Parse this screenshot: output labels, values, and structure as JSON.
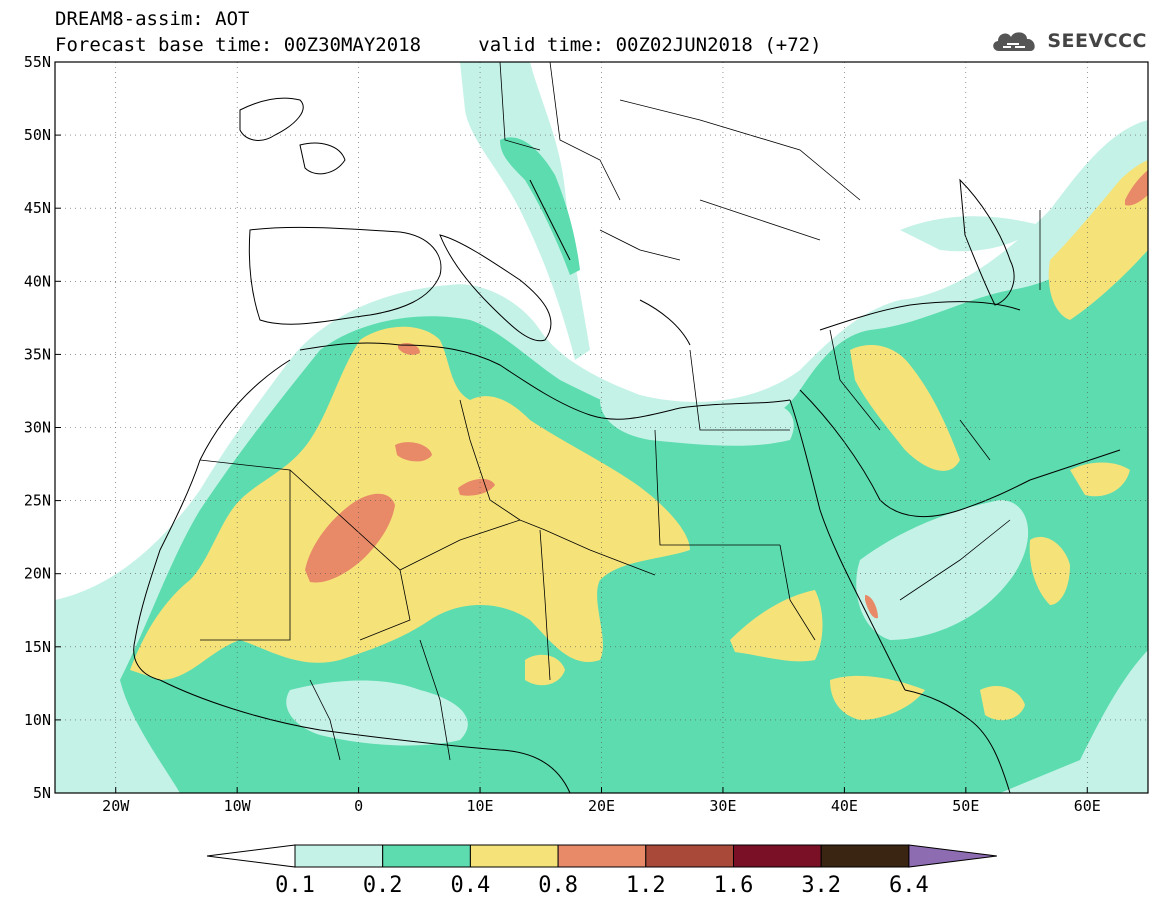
{
  "header": {
    "title": "DREAM8-assim: AOT",
    "base_time_label": "Forecast base time:",
    "base_time": "00Z30MAY2018",
    "valid_time_label": "valid time:",
    "valid_time": "00Z02JUN2018",
    "lead": "(+72)"
  },
  "logo": {
    "text": "SEEVCCC",
    "icon": "cloud-icon"
  },
  "map": {
    "projection": "lat-lon",
    "lon_range": [
      -25,
      65
    ],
    "lat_range": [
      5,
      55
    ],
    "grid": true,
    "lon_ticks": [
      {
        "value": -20,
        "label": "20W"
      },
      {
        "value": -10,
        "label": "10W"
      },
      {
        "value": 0,
        "label": "0"
      },
      {
        "value": 10,
        "label": "10E"
      },
      {
        "value": 20,
        "label": "20E"
      },
      {
        "value": 30,
        "label": "30E"
      },
      {
        "value": 40,
        "label": "40E"
      },
      {
        "value": 50,
        "label": "50E"
      },
      {
        "value": 60,
        "label": "60E"
      }
    ],
    "lat_ticks": [
      {
        "value": 55,
        "label": "55N"
      },
      {
        "value": 50,
        "label": "50N"
      },
      {
        "value": 45,
        "label": "45N"
      },
      {
        "value": 40,
        "label": "40N"
      },
      {
        "value": 35,
        "label": "35N"
      },
      {
        "value": 30,
        "label": "30N"
      },
      {
        "value": 25,
        "label": "25N"
      },
      {
        "value": 20,
        "label": "20N"
      },
      {
        "value": 15,
        "label": "15N"
      },
      {
        "value": 10,
        "label": "10N"
      },
      {
        "value": 5,
        "label": "5N"
      }
    ]
  },
  "colorbar": {
    "low_color": "#ffffff",
    "high_color": "#8d6cb1",
    "bins": [
      {
        "color": "#c4f2e6"
      },
      {
        "color": "#5cdcaf"
      },
      {
        "color": "#f5e37a"
      },
      {
        "color": "#e88a68"
      },
      {
        "color": "#a8493a"
      },
      {
        "color": "#7a1026"
      },
      {
        "color": "#3a2512"
      }
    ],
    "labels": [
      "0.1",
      "0.2",
      "0.4",
      "0.8",
      "1.2",
      "1.6",
      "3.2",
      "6.4"
    ]
  },
  "colors": {
    "c1": "#c4f2e6",
    "c2": "#5cdcaf",
    "c3": "#f5e37a",
    "c4": "#e88a68"
  }
}
